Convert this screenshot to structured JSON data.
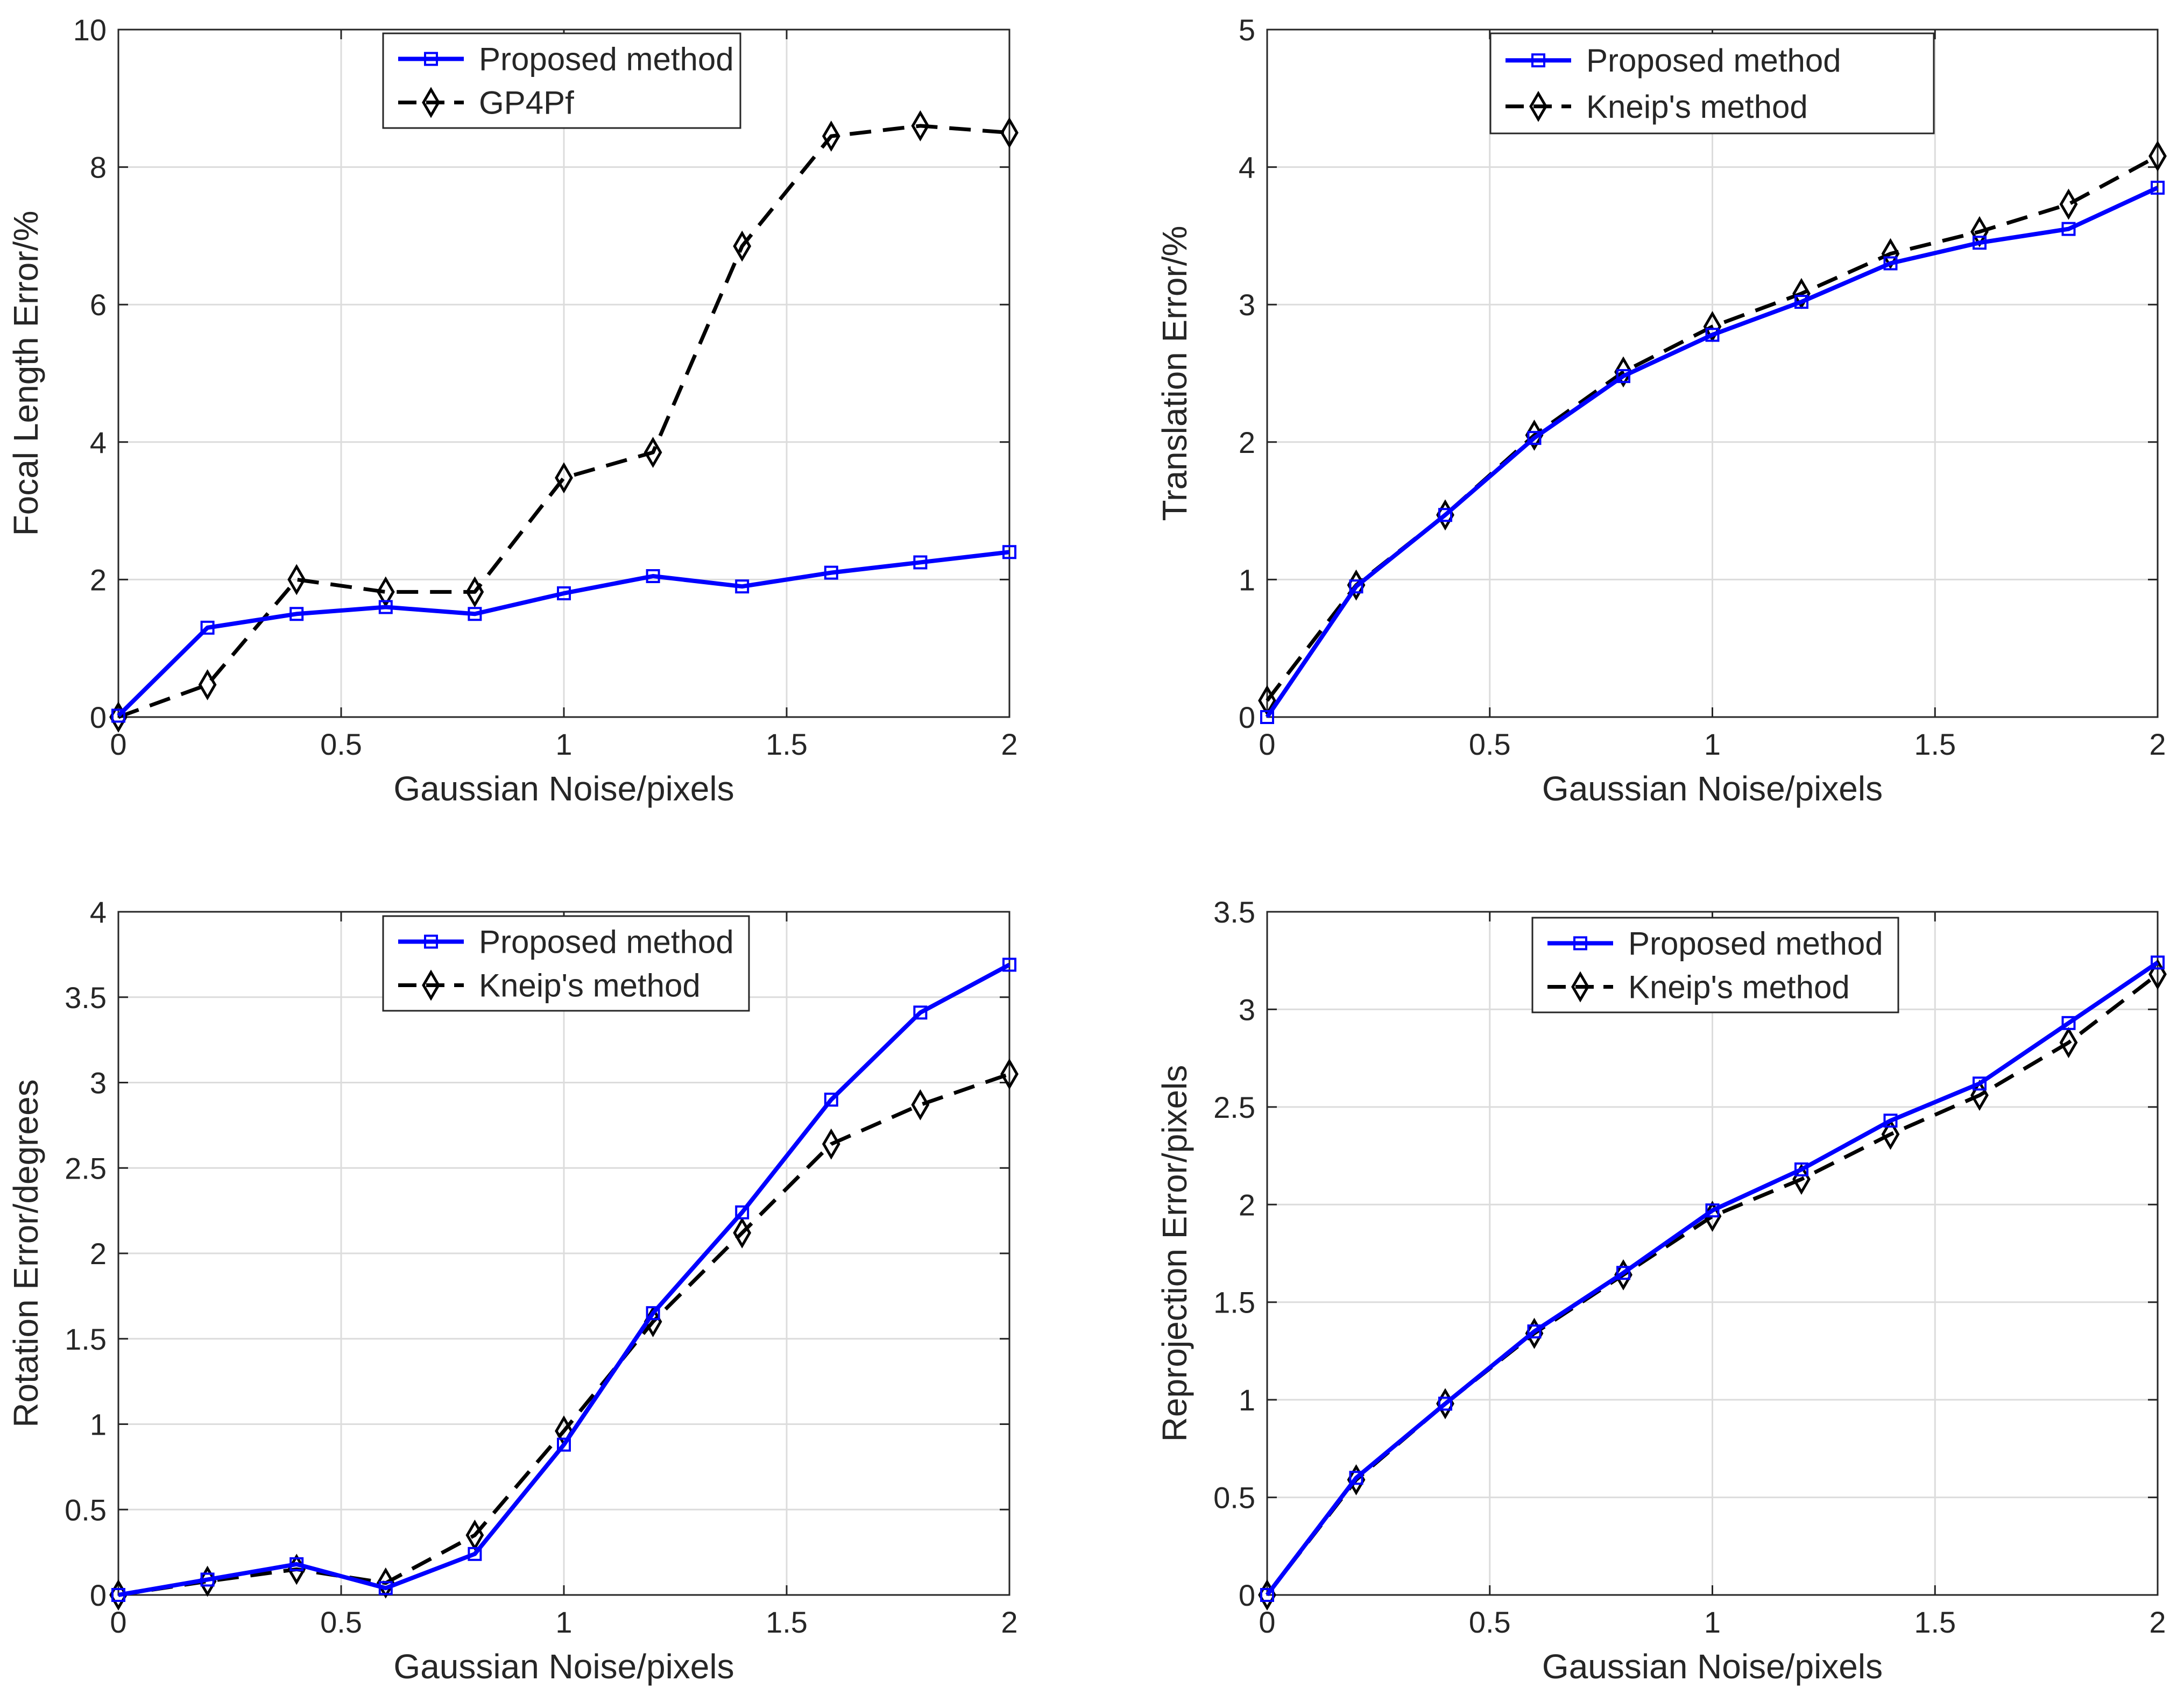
{
  "colors": {
    "proposed": "#0000ff",
    "baseline": "#000000",
    "grid": "#dcdcdc",
    "axis": "#262626",
    "background": "#ffffff"
  },
  "chart_data": [
    {
      "type": "line",
      "xlabel": "Gaussian Noise/pixels",
      "ylabel": "Focal Length Error/%",
      "xlim": [
        0,
        2
      ],
      "ylim": [
        0,
        10
      ],
      "xticks": [
        0,
        0.5,
        1,
        1.5,
        2
      ],
      "xtick_labels": [
        "0",
        "0.5",
        "1",
        "1.5",
        "2"
      ],
      "yticks": [
        0,
        2,
        4,
        6,
        8,
        10
      ],
      "ytick_labels": [
        "0",
        "2",
        "4",
        "6",
        "8",
        "10"
      ],
      "grid": true,
      "legend_position": "top-center",
      "x": [
        0,
        0.2,
        0.4,
        0.6,
        0.8,
        1.0,
        1.2,
        1.4,
        1.6,
        1.8,
        2.0
      ],
      "series": [
        {
          "name": "Proposed method",
          "style": "solid",
          "marker": "square-icon",
          "color": "#0000ff",
          "values": [
            0.02,
            1.3,
            1.5,
            1.6,
            1.5,
            1.8,
            2.05,
            1.9,
            2.1,
            2.25,
            2.4
          ]
        },
        {
          "name": "GP4Pf",
          "style": "dashed",
          "marker": "diamond-icon",
          "color": "#000000",
          "values": [
            0.0,
            0.47,
            2.0,
            1.82,
            1.82,
            3.48,
            3.85,
            6.85,
            8.45,
            8.6,
            8.5
          ]
        }
      ]
    },
    {
      "type": "line",
      "xlabel": "Gaussian Noise/pixels",
      "ylabel": "Translation Error/%",
      "xlim": [
        0,
        2
      ],
      "ylim": [
        0,
        5
      ],
      "xticks": [
        0,
        0.5,
        1,
        1.5,
        2
      ],
      "xtick_labels": [
        "0",
        "0.5",
        "1",
        "1.5",
        "2"
      ],
      "yticks": [
        0,
        1,
        2,
        3,
        4,
        5
      ],
      "ytick_labels": [
        "0",
        "1",
        "2",
        "3",
        "4",
        "5"
      ],
      "grid": true,
      "legend_position": "top-center",
      "x": [
        0,
        0.2,
        0.4,
        0.6,
        0.8,
        1.0,
        1.2,
        1.4,
        1.6,
        1.8,
        2.0
      ],
      "series": [
        {
          "name": "Proposed method",
          "style": "solid",
          "marker": "square-icon",
          "color": "#0000ff",
          "values": [
            0.0,
            0.95,
            1.47,
            2.03,
            2.48,
            2.78,
            3.02,
            3.3,
            3.45,
            3.55,
            3.85
          ]
        },
        {
          "name": "Kneip's method",
          "style": "dashed",
          "marker": "diamond-icon",
          "color": "#000000",
          "values": [
            0.12,
            0.96,
            1.47,
            2.05,
            2.51,
            2.84,
            3.08,
            3.37,
            3.53,
            3.73,
            4.08
          ]
        }
      ]
    },
    {
      "type": "line",
      "xlabel": "Gaussian Noise/pixels",
      "ylabel": "Rotation Error/degrees",
      "xlim": [
        0,
        2
      ],
      "ylim": [
        0,
        4
      ],
      "xticks": [
        0,
        0.5,
        1,
        1.5,
        2
      ],
      "xtick_labels": [
        "0",
        "0.5",
        "1",
        "1.5",
        "2"
      ],
      "yticks": [
        0,
        0.5,
        1,
        1.5,
        2,
        2.5,
        3,
        3.5,
        4
      ],
      "ytick_labels": [
        "0",
        "0.5",
        "1",
        "1.5",
        "2",
        "2.5",
        "3",
        "3.5",
        "4"
      ],
      "grid": true,
      "legend_position": "top-center",
      "x": [
        0,
        0.2,
        0.4,
        0.6,
        0.8,
        1.0,
        1.2,
        1.4,
        1.6,
        1.8,
        2.0
      ],
      "series": [
        {
          "name": "Proposed method",
          "style": "solid",
          "marker": "square-icon",
          "color": "#0000ff",
          "values": [
            0.0,
            0.09,
            0.18,
            0.04,
            0.24,
            0.88,
            1.65,
            2.24,
            2.9,
            3.41,
            3.69
          ]
        },
        {
          "name": "Kneip's method",
          "style": "dashed",
          "marker": "diamond-icon",
          "color": "#000000",
          "values": [
            0.0,
            0.08,
            0.15,
            0.07,
            0.35,
            0.96,
            1.6,
            2.12,
            2.64,
            2.87,
            3.05
          ]
        }
      ]
    },
    {
      "type": "line",
      "xlabel": "Gaussian Noise/pixels",
      "ylabel": "Reprojection Error/pixels",
      "xlim": [
        0,
        2
      ],
      "ylim": [
        0,
        3.5
      ],
      "xticks": [
        0,
        0.5,
        1,
        1.5,
        2
      ],
      "xtick_labels": [
        "0",
        "0.5",
        "1",
        "1.5",
        "2"
      ],
      "yticks": [
        0,
        0.5,
        1,
        1.5,
        2,
        2.5,
        3,
        3.5
      ],
      "ytick_labels": [
        "0",
        "0.5",
        "1",
        "1.5",
        "2",
        "2.5",
        "3",
        "3.5"
      ],
      "grid": true,
      "legend_position": "top-center",
      "x": [
        0,
        0.2,
        0.4,
        0.6,
        0.8,
        1.0,
        1.2,
        1.4,
        1.6,
        1.8,
        2.0
      ],
      "series": [
        {
          "name": "Proposed method",
          "style": "solid",
          "marker": "square-icon",
          "color": "#0000ff",
          "values": [
            0.0,
            0.6,
            0.98,
            1.35,
            1.65,
            1.97,
            2.18,
            2.43,
            2.62,
            2.93,
            3.24
          ]
        },
        {
          "name": "Kneip's method",
          "style": "dashed",
          "marker": "diamond-icon",
          "color": "#000000",
          "values": [
            0.0,
            0.59,
            0.98,
            1.34,
            1.64,
            1.94,
            2.13,
            2.36,
            2.56,
            2.83,
            3.18
          ]
        }
      ]
    }
  ]
}
